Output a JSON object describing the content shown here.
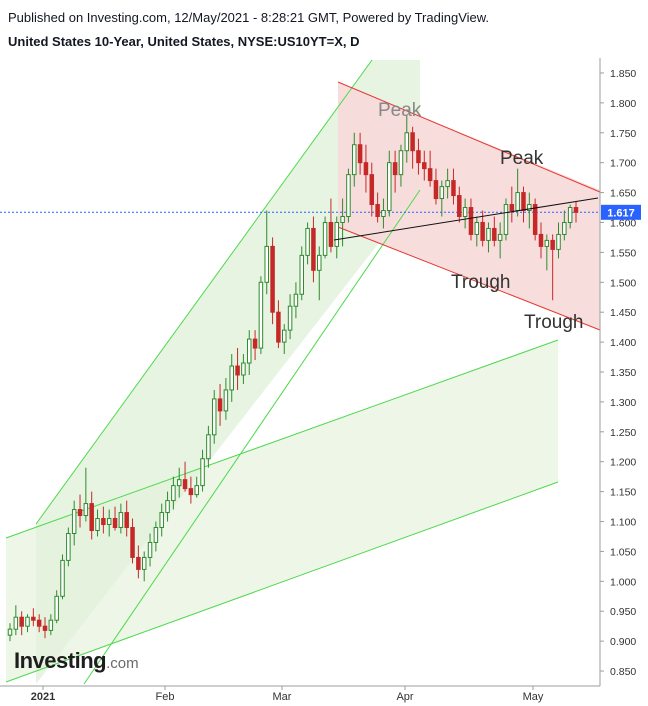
{
  "header": {
    "published": "Published on Investing.com, 12/May/2021 - 8:28:21 GMT, Powered by TradingView.",
    "symbol": "United States 10-Year, United States, NYSE:US10YT=X, D"
  },
  "logo": {
    "main": "Investing",
    "suffix": ".com"
  },
  "colors": {
    "up": "#2e8b2e",
    "down": "#c62828",
    "green_line": "#4cd94c",
    "green_fill": "#e6f4e0",
    "red_line": "#e53935",
    "red_fill": "#f9dede",
    "price_line": "#2962ff",
    "price_label_bg": "#2962ff"
  },
  "chart_data": {
    "type": "candlestick",
    "ylim": [
      0.825,
      1.875
    ],
    "yticks": [
      "0.850",
      "0.900",
      "0.950",
      "1.000",
      "1.050",
      "1.100",
      "1.150",
      "1.200",
      "1.250",
      "1.300",
      "1.350",
      "1.400",
      "1.450",
      "1.500",
      "1.550",
      "1.600",
      "1.650",
      "1.700",
      "1.750",
      "1.800",
      "1.850"
    ],
    "xlabels": [
      "2021",
      "Feb",
      "Mar",
      "Apr",
      "May"
    ],
    "current_price": "1.617",
    "annotations": [
      "Peak",
      "Peak",
      "Trough",
      "Trough"
    ],
    "candles": [
      [
        0.91,
        0.93,
        0.9,
        0.92
      ],
      [
        0.92,
        0.96,
        0.91,
        0.94
      ],
      [
        0.94,
        0.95,
        0.91,
        0.925
      ],
      [
        0.925,
        0.945,
        0.915,
        0.94
      ],
      [
        0.94,
        0.955,
        0.925,
        0.935
      ],
      [
        0.935,
        0.945,
        0.915,
        0.925
      ],
      [
        0.925,
        0.94,
        0.905,
        0.918
      ],
      [
        0.918,
        0.945,
        0.91,
        0.935
      ],
      [
        0.935,
        0.985,
        0.93,
        0.975
      ],
      [
        0.975,
        1.045,
        0.97,
        1.035
      ],
      [
        1.035,
        1.09,
        1.025,
        1.08
      ],
      [
        1.08,
        1.135,
        1.06,
        1.12
      ],
      [
        1.12,
        1.145,
        1.09,
        1.11
      ],
      [
        1.11,
        1.19,
        1.1,
        1.13
      ],
      [
        1.13,
        1.15,
        1.07,
        1.085
      ],
      [
        1.085,
        1.12,
        1.075,
        1.105
      ],
      [
        1.105,
        1.125,
        1.08,
        1.095
      ],
      [
        1.095,
        1.12,
        1.075,
        1.105
      ],
      [
        1.105,
        1.125,
        1.085,
        1.09
      ],
      [
        1.09,
        1.13,
        1.08,
        1.115
      ],
      [
        1.115,
        1.135,
        1.075,
        1.09
      ],
      [
        1.09,
        1.105,
        1.03,
        1.04
      ],
      [
        1.04,
        1.06,
        1.005,
        1.02
      ],
      [
        1.02,
        1.05,
        1.0,
        1.04
      ],
      [
        1.04,
        1.08,
        1.025,
        1.065
      ],
      [
        1.065,
        1.1,
        1.05,
        1.09
      ],
      [
        1.09,
        1.13,
        1.075,
        1.115
      ],
      [
        1.115,
        1.15,
        1.1,
        1.135
      ],
      [
        1.135,
        1.175,
        1.12,
        1.16
      ],
      [
        1.16,
        1.19,
        1.14,
        1.17
      ],
      [
        1.17,
        1.2,
        1.15,
        1.155
      ],
      [
        1.155,
        1.175,
        1.13,
        1.145
      ],
      [
        1.145,
        1.175,
        1.14,
        1.16
      ],
      [
        1.16,
        1.22,
        1.15,
        1.205
      ],
      [
        1.205,
        1.26,
        1.19,
        1.245
      ],
      [
        1.245,
        1.32,
        1.23,
        1.305
      ],
      [
        1.305,
        1.33,
        1.26,
        1.285
      ],
      [
        1.285,
        1.34,
        1.27,
        1.32
      ],
      [
        1.32,
        1.38,
        1.3,
        1.36
      ],
      [
        1.36,
        1.39,
        1.32,
        1.345
      ],
      [
        1.345,
        1.38,
        1.33,
        1.365
      ],
      [
        1.365,
        1.42,
        1.345,
        1.405
      ],
      [
        1.405,
        1.42,
        1.37,
        1.39
      ],
      [
        1.39,
        1.51,
        1.38,
        1.5
      ],
      [
        1.5,
        1.62,
        1.48,
        1.56
      ],
      [
        1.56,
        1.575,
        1.43,
        1.45
      ],
      [
        1.45,
        1.47,
        1.39,
        1.4
      ],
      [
        1.4,
        1.43,
        1.38,
        1.42
      ],
      [
        1.42,
        1.48,
        1.405,
        1.46
      ],
      [
        1.46,
        1.5,
        1.44,
        1.48
      ],
      [
        1.48,
        1.56,
        1.47,
        1.545
      ],
      [
        1.545,
        1.6,
        1.53,
        1.59
      ],
      [
        1.59,
        1.61,
        1.5,
        1.52
      ],
      [
        1.52,
        1.56,
        1.47,
        1.545
      ],
      [
        1.545,
        1.61,
        1.54,
        1.6
      ],
      [
        1.6,
        1.64,
        1.55,
        1.56
      ],
      [
        1.56,
        1.61,
        1.54,
        1.6
      ],
      [
        1.6,
        1.64,
        1.56,
        1.61
      ],
      [
        1.61,
        1.69,
        1.6,
        1.68
      ],
      [
        1.68,
        1.75,
        1.66,
        1.73
      ],
      [
        1.73,
        1.75,
        1.68,
        1.7
      ],
      [
        1.7,
        1.73,
        1.65,
        1.68
      ],
      [
        1.68,
        1.7,
        1.61,
        1.63
      ],
      [
        1.63,
        1.65,
        1.6,
        1.61
      ],
      [
        1.61,
        1.64,
        1.59,
        1.62
      ],
      [
        1.62,
        1.72,
        1.61,
        1.7
      ],
      [
        1.7,
        1.72,
        1.65,
        1.68
      ],
      [
        1.68,
        1.73,
        1.66,
        1.72
      ],
      [
        1.72,
        1.78,
        1.7,
        1.75
      ],
      [
        1.75,
        1.76,
        1.69,
        1.72
      ],
      [
        1.72,
        1.74,
        1.68,
        1.7
      ],
      [
        1.7,
        1.72,
        1.67,
        1.69
      ],
      [
        1.69,
        1.72,
        1.66,
        1.67
      ],
      [
        1.67,
        1.69,
        1.63,
        1.64
      ],
      [
        1.64,
        1.67,
        1.61,
        1.66
      ],
      [
        1.66,
        1.69,
        1.64,
        1.67
      ],
      [
        1.67,
        1.69,
        1.63,
        1.645
      ],
      [
        1.645,
        1.66,
        1.6,
        1.61
      ],
      [
        1.61,
        1.64,
        1.59,
        1.625
      ],
      [
        1.625,
        1.64,
        1.57,
        1.58
      ],
      [
        1.58,
        1.61,
        1.56,
        1.6
      ],
      [
        1.6,
        1.62,
        1.56,
        1.57
      ],
      [
        1.57,
        1.6,
        1.55,
        1.59
      ],
      [
        1.59,
        1.61,
        1.56,
        1.57
      ],
      [
        1.57,
        1.6,
        1.54,
        1.58
      ],
      [
        1.58,
        1.64,
        1.57,
        1.63
      ],
      [
        1.63,
        1.66,
        1.6,
        1.62
      ],
      [
        1.62,
        1.69,
        1.61,
        1.65
      ],
      [
        1.65,
        1.66,
        1.6,
        1.62
      ],
      [
        1.62,
        1.65,
        1.59,
        1.63
      ],
      [
        1.63,
        1.64,
        1.57,
        1.58
      ],
      [
        1.58,
        1.6,
        1.54,
        1.56
      ],
      [
        1.56,
        1.58,
        1.52,
        1.57
      ],
      [
        1.57,
        1.58,
        1.47,
        1.555
      ],
      [
        1.555,
        1.6,
        1.54,
        1.58
      ],
      [
        1.58,
        1.62,
        1.57,
        1.6
      ],
      [
        1.6,
        1.63,
        1.59,
        1.625
      ],
      [
        1.625,
        1.635,
        1.6,
        1.617
      ]
    ]
  }
}
